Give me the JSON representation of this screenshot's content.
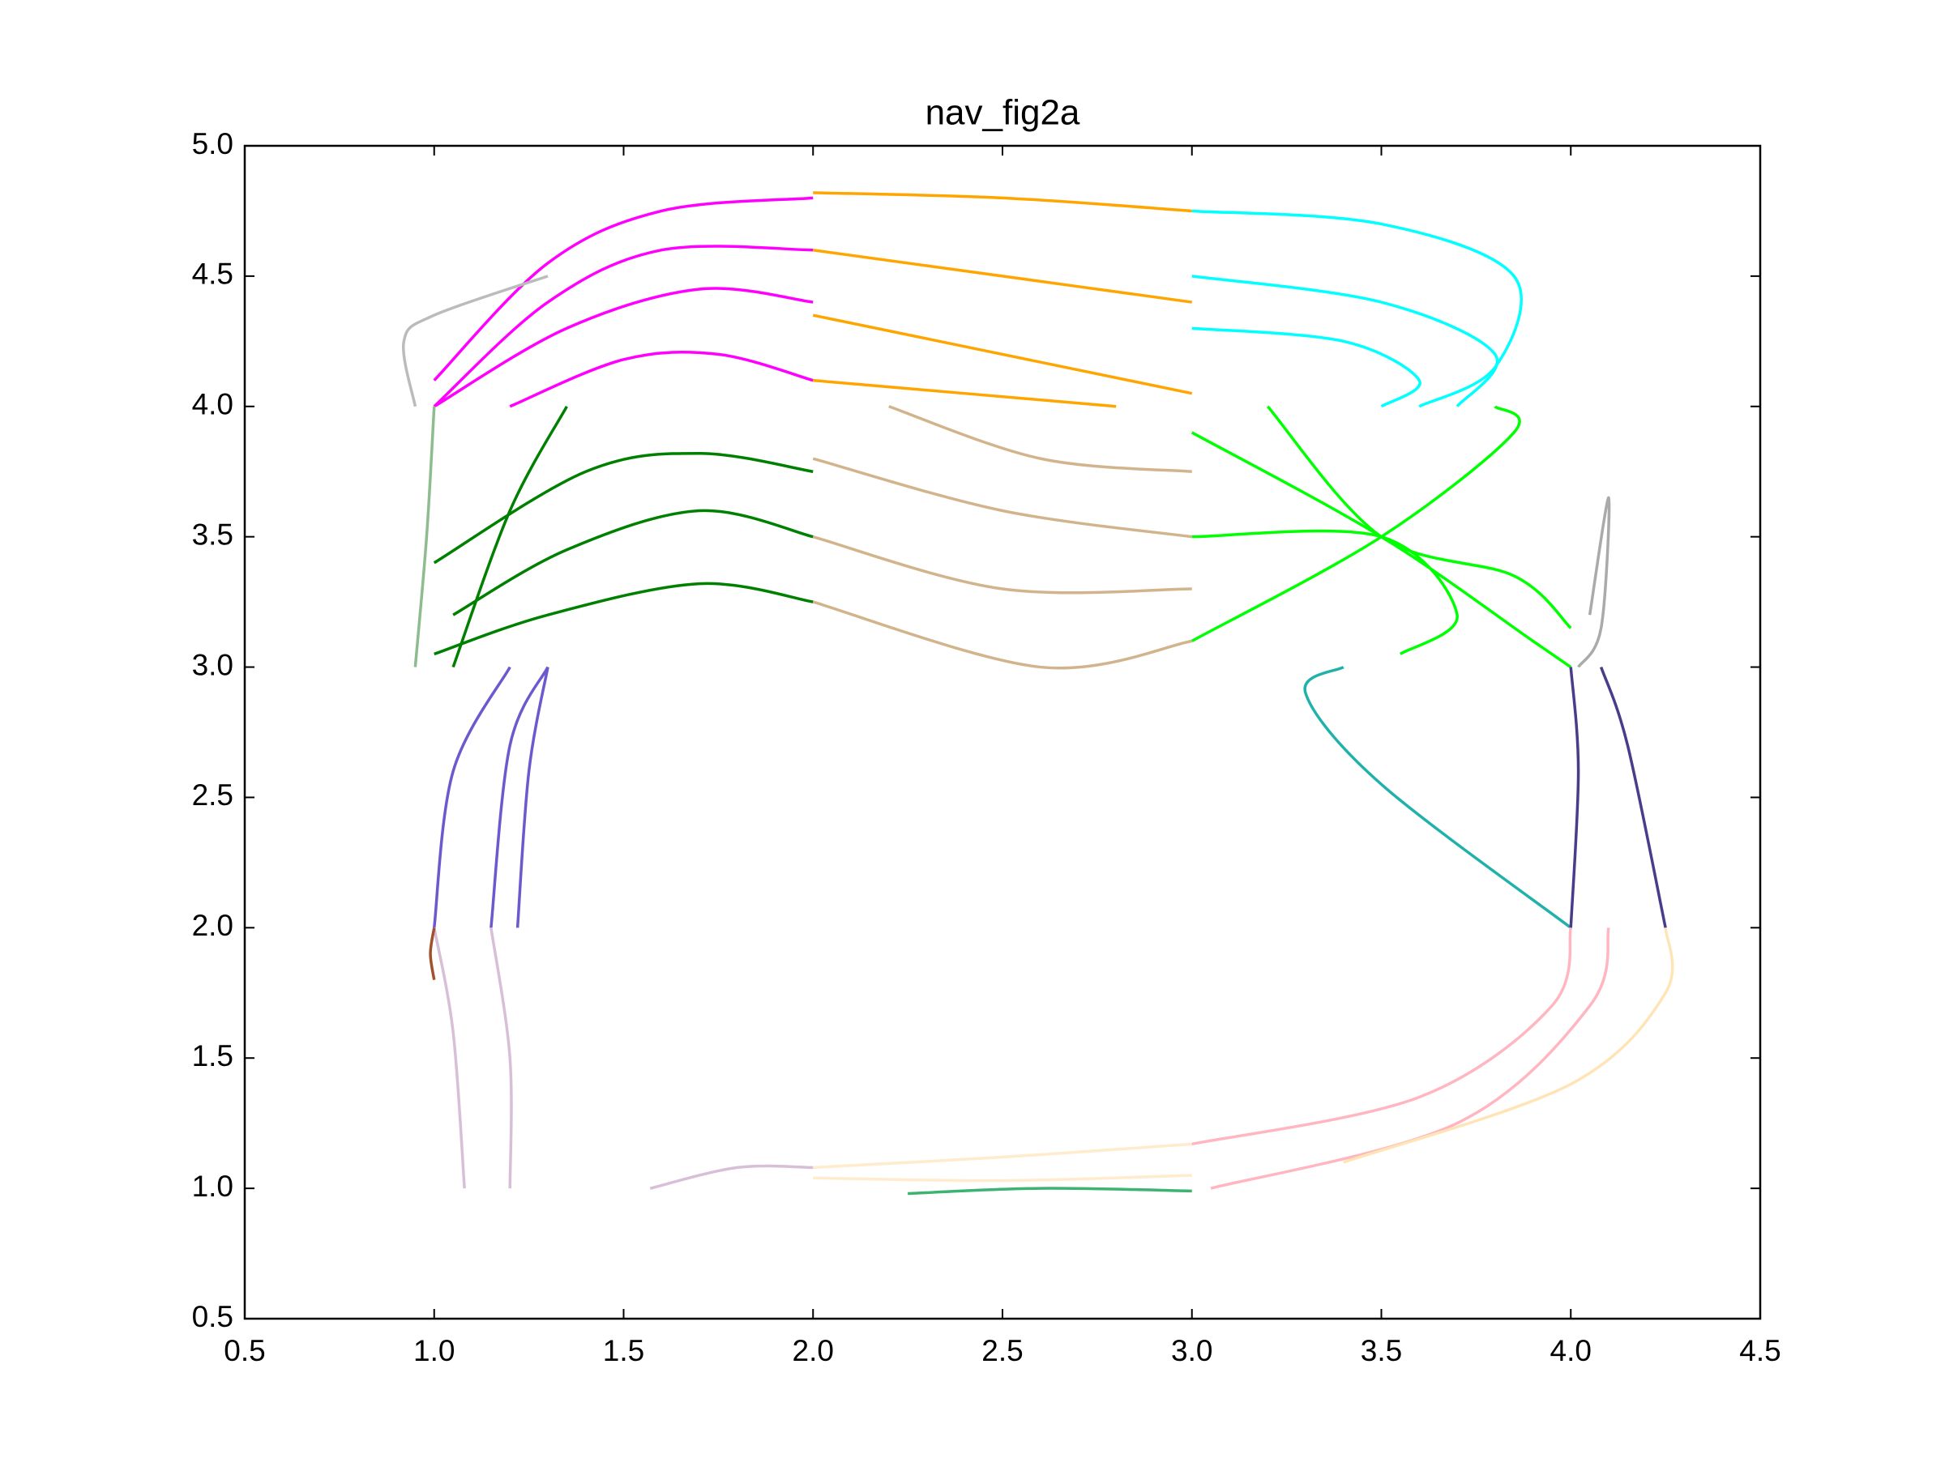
{
  "chart_data": {
    "type": "line",
    "title": "nav_fig2a",
    "xlim": [
      0.5,
      4.5
    ],
    "xticks": [
      0.5,
      {
        "value": 1,
        "label": "1.0"
      },
      1.5,
      {
        "value": 2,
        "label": "2.0"
      },
      2.5,
      {
        "value": 3,
        "label": "3.0"
      },
      3.5,
      {
        "value": 4,
        "label": "4.0"
      },
      4.5
    ],
    "ylim": [
      0.5,
      5
    ],
    "yticks": [
      0.5,
      {
        "value": 1,
        "label": "1.0"
      },
      1.5,
      {
        "value": 2,
        "label": "2.0"
      },
      2.5,
      {
        "value": 3,
        "label": "3.0"
      },
      3.5,
      {
        "value": 4,
        "label": "4.0"
      },
      4.5,
      {
        "value": 5,
        "label": "5.0"
      }
    ],
    "grid": false,
    "series": [
      {
        "color": "#ff00ff",
        "x": [
          1.0,
          1.3,
          1.6,
          2.0
        ],
        "values": [
          4.1,
          4.55,
          4.75,
          4.8
        ]
      },
      {
        "color": "#ff00ff",
        "x": [
          1.0,
          1.3,
          1.6,
          2.0
        ],
        "values": [
          4.0,
          4.4,
          4.6,
          4.6
        ]
      },
      {
        "color": "#ff00ff",
        "x": [
          1.0,
          1.35,
          1.7,
          2.0
        ],
        "values": [
          4.0,
          4.3,
          4.45,
          4.4
        ]
      },
      {
        "color": "#ff00ff",
        "x": [
          1.2,
          1.5,
          1.75,
          2.0
        ],
        "values": [
          4.0,
          4.18,
          4.2,
          4.1
        ]
      },
      {
        "color": "#ffa500",
        "x": [
          2.0,
          2.5,
          3.0
        ],
        "values": [
          4.82,
          4.8,
          4.75
        ]
      },
      {
        "color": "#ffa500",
        "x": [
          2.0,
          2.5,
          3.0
        ],
        "values": [
          4.6,
          4.5,
          4.4
        ]
      },
      {
        "color": "#ffa500",
        "x": [
          2.0,
          2.5,
          3.0
        ],
        "values": [
          4.35,
          4.2,
          4.05
        ]
      },
      {
        "color": "#ffa500",
        "x": [
          2.0,
          2.4,
          2.8
        ],
        "values": [
          4.1,
          4.05,
          4.0
        ]
      },
      {
        "color": "#00ffff",
        "x": [
          3.0,
          3.5,
          3.85,
          3.8,
          3.6
        ],
        "values": [
          4.75,
          4.7,
          4.5,
          4.15,
          4.0
        ]
      },
      {
        "color": "#00ffff",
        "x": [
          3.0,
          3.5,
          3.8,
          3.7
        ],
        "values": [
          4.5,
          4.4,
          4.2,
          4.0
        ]
      },
      {
        "color": "#00ffff",
        "x": [
          3.0,
          3.4,
          3.6,
          3.5
        ],
        "values": [
          4.3,
          4.25,
          4.1,
          4.0
        ]
      },
      {
        "color": "#008000",
        "x": [
          1.0,
          1.3,
          1.7,
          2.0
        ],
        "values": [
          3.05,
          3.2,
          3.32,
          3.25
        ]
      },
      {
        "color": "#008000",
        "x": [
          1.05,
          1.35,
          1.7,
          2.0
        ],
        "values": [
          3.2,
          3.45,
          3.6,
          3.5
        ]
      },
      {
        "color": "#008000",
        "x": [
          1.0,
          1.4,
          1.7,
          2.0
        ],
        "values": [
          3.4,
          3.75,
          3.82,
          3.75
        ]
      },
      {
        "color": "#008000",
        "x": [
          1.05,
          1.2,
          1.35
        ],
        "values": [
          3.0,
          3.6,
          4.0
        ]
      },
      {
        "color": "#d2b48c",
        "x": [
          2.0,
          2.6,
          3.0
        ],
        "values": [
          3.25,
          3.0,
          3.1
        ]
      },
      {
        "color": "#d2b48c",
        "x": [
          2.0,
          2.5,
          3.0
        ],
        "values": [
          3.5,
          3.3,
          3.3
        ]
      },
      {
        "color": "#d2b48c",
        "x": [
          2.0,
          2.5,
          3.0
        ],
        "values": [
          3.8,
          3.6,
          3.5
        ]
      },
      {
        "color": "#d2b48c",
        "x": [
          2.2,
          2.6,
          3.0
        ],
        "values": [
          4.0,
          3.8,
          3.75
        ]
      },
      {
        "color": "#00ff00",
        "x": [
          3.0,
          3.5,
          3.9,
          4.0
        ],
        "values": [
          3.9,
          3.5,
          3.1,
          3.0
        ]
      },
      {
        "color": "#00ff00",
        "x": [
          3.0,
          3.5,
          3.85,
          3.8
        ],
        "values": [
          3.1,
          3.5,
          3.9,
          4.0
        ]
      },
      {
        "color": "#00ff00",
        "x": [
          3.0,
          3.5,
          3.7,
          3.55
        ],
        "values": [
          3.5,
          3.5,
          3.2,
          3.05
        ]
      },
      {
        "color": "#00ff00",
        "x": [
          3.2,
          3.5,
          3.85,
          4.0
        ],
        "values": [
          4.0,
          3.5,
          3.35,
          3.15
        ]
      },
      {
        "color": "#aaaaaa",
        "x": [
          4.02,
          4.08,
          4.1,
          4.05
        ],
        "values": [
          3.0,
          3.15,
          3.65,
          3.2
        ]
      },
      {
        "color": "#bbbbbb",
        "x": [
          0.95,
          0.92,
          1.0,
          1.3
        ],
        "values": [
          4.0,
          4.25,
          4.35,
          4.5
        ]
      },
      {
        "color": "#20b2aa",
        "x": [
          4.0,
          3.5,
          3.3,
          3.4
        ],
        "values": [
          2.0,
          2.55,
          2.9,
          3.0
        ]
      },
      {
        "color": "#483d8b",
        "x": [
          4.0,
          4.02,
          4.0
        ],
        "values": [
          2.0,
          2.6,
          3.0
        ]
      },
      {
        "color": "#483d8b",
        "x": [
          4.25,
          4.15,
          4.08
        ],
        "values": [
          2.0,
          2.7,
          3.0
        ]
      },
      {
        "color": "#6a5acd",
        "x": [
          1.0,
          1.05,
          1.2
        ],
        "values": [
          2.0,
          2.6,
          3.0
        ]
      },
      {
        "color": "#6a5acd",
        "x": [
          1.15,
          1.2,
          1.3
        ],
        "values": [
          2.0,
          2.7,
          3.0
        ]
      },
      {
        "color": "#6a5acd",
        "x": [
          1.22,
          1.25,
          1.3
        ],
        "values": [
          2.0,
          2.6,
          3.0
        ]
      },
      {
        "color": "#d8bfd8",
        "x": [
          1.08,
          1.05,
          1.0
        ],
        "values": [
          1.0,
          1.6,
          2.0
        ]
      },
      {
        "color": "#d8bfd8",
        "x": [
          1.2,
          1.2,
          1.15
        ],
        "values": [
          1.0,
          1.5,
          2.0
        ]
      },
      {
        "color": "#d8bfd8",
        "x": [
          1.57,
          1.8,
          2.0
        ],
        "values": [
          1.0,
          1.08,
          1.08
        ]
      },
      {
        "color": "#ffebcd",
        "x": [
          2.0,
          2.5,
          3.0
        ],
        "values": [
          1.08,
          1.12,
          1.17
        ]
      },
      {
        "color": "#ffebcd",
        "x": [
          2.0,
          2.5,
          3.0
        ],
        "values": [
          1.04,
          1.03,
          1.05
        ]
      },
      {
        "color": "#ffb6c1",
        "x": [
          3.0,
          3.6,
          3.95,
          4.0
        ],
        "values": [
          1.17,
          1.35,
          1.7,
          2.0
        ]
      },
      {
        "color": "#ffb6c1",
        "x": [
          3.05,
          3.7,
          4.05,
          4.1
        ],
        "values": [
          1.0,
          1.25,
          1.7,
          2.0
        ]
      },
      {
        "color": "#ffe4b5",
        "x": [
          3.4,
          4.0,
          4.25,
          4.25
        ],
        "values": [
          1.1,
          1.4,
          1.75,
          2.0
        ]
      },
      {
        "color": "#3cb371",
        "x": [
          2.25,
          2.6,
          3.0
        ],
        "values": [
          0.98,
          1.0,
          0.99
        ]
      },
      {
        "color": "#a0522d",
        "x": [
          1.0,
          0.99,
          1.0
        ],
        "values": [
          2.0,
          1.9,
          1.8
        ]
      },
      {
        "color": "#8fbc8f",
        "x": [
          0.95,
          0.98,
          1.0
        ],
        "values": [
          3.0,
          3.5,
          4.0
        ]
      }
    ]
  }
}
